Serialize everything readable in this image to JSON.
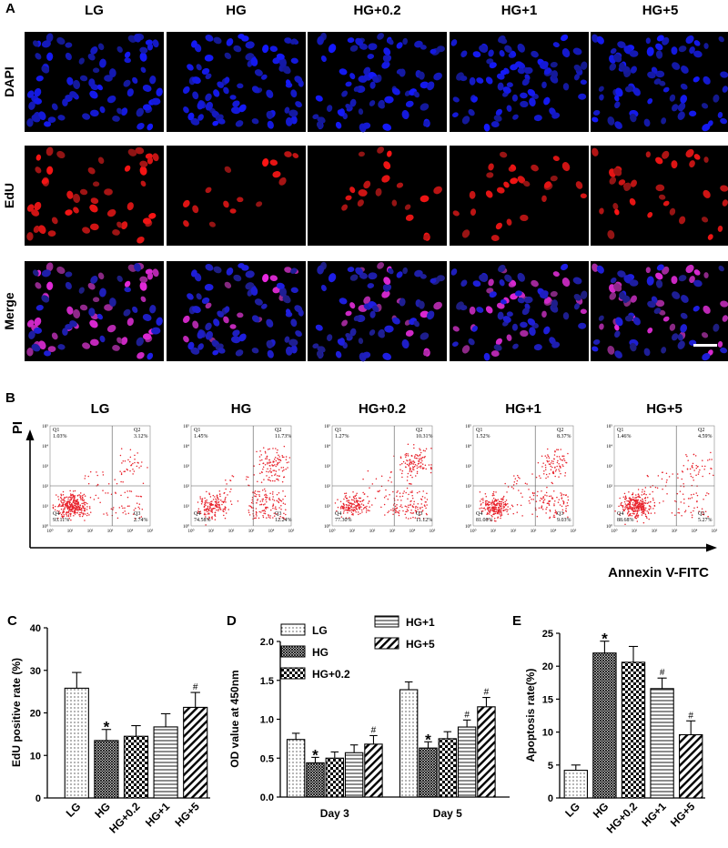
{
  "panel_a": {
    "letter": "A",
    "columns": [
      "LG",
      "HG",
      "HG+0.2",
      "HG+1",
      "HG+5"
    ],
    "rows": [
      "DAPI",
      "EdU",
      "Merge"
    ]
  },
  "panel_b": {
    "letter": "B",
    "groups": [
      "LG",
      "HG",
      "HG+0.2",
      "HG+1",
      "HG+5"
    ],
    "y_label": "PI",
    "x_label": "Annexin V-FITC",
    "quadrant_names": [
      "Q1",
      "Q2",
      "Q3",
      "Q4"
    ],
    "axis_tick_labels": [
      "10⁰",
      "10¹",
      "10²",
      "10³",
      "10⁴",
      "10⁵"
    ],
    "plots": [
      {
        "Q1": "1.03%",
        "Q2": "3.12%",
        "Q3": "2.74%",
        "Q4": "93.11%"
      },
      {
        "Q1": "1.45%",
        "Q2": "11.73%",
        "Q3": "12.24%",
        "Q4": "74.58%"
      },
      {
        "Q1": "1.27%",
        "Q2": "10.31%",
        "Q3": "11.12%",
        "Q4": "77.30%"
      },
      {
        "Q1": "1.52%",
        "Q2": "8.37%",
        "Q3": "9.03%",
        "Q4": "81.08%"
      },
      {
        "Q1": "1.46%",
        "Q2": "4.59%",
        "Q3": "5.27%",
        "Q4": "88.68%"
      }
    ]
  },
  "chart_data": [
    {
      "type": "bar",
      "panel": "C",
      "y_label": "EdU positive rate (%)",
      "categories": [
        "LG",
        "HG",
        "HG+0.2",
        "HG+1",
        "HG+5"
      ],
      "values": [
        25.8,
        13.5,
        14.5,
        16.7,
        21.3
      ],
      "errors": [
        3.7,
        2.6,
        2.5,
        3.1,
        3.5
      ],
      "annotations": [
        null,
        "*",
        null,
        null,
        "#"
      ],
      "patterns": [
        "dots",
        "crosshatch",
        "checker",
        "hlines",
        "diagonal"
      ],
      "color": "#000000",
      "ylim": [
        0,
        40
      ],
      "yticks": [
        0,
        10,
        20,
        30,
        40
      ]
    },
    {
      "type": "grouped_bar",
      "panel": "D",
      "y_label": "OD value at 450nm",
      "categories": [
        "Day 3",
        "Day 5"
      ],
      "series": [
        {
          "name": "LG",
          "pattern": "dots",
          "values": [
            0.74,
            1.38
          ],
          "errors": [
            0.08,
            0.1
          ]
        },
        {
          "name": "HG",
          "pattern": "crosshatch",
          "values": [
            0.44,
            0.63
          ],
          "errors": [
            0.07,
            0.08
          ],
          "annotations": [
            "*",
            "*"
          ]
        },
        {
          "name": "HG+0.2",
          "pattern": "checker",
          "values": [
            0.5,
            0.75
          ],
          "errors": [
            0.08,
            0.09
          ]
        },
        {
          "name": "HG+1",
          "pattern": "hlines",
          "values": [
            0.57,
            0.9
          ],
          "errors": [
            0.1,
            0.09
          ],
          "annotations": [
            null,
            "#"
          ]
        },
        {
          "name": "HG+5",
          "pattern": "diagonal",
          "values": [
            0.68,
            1.16
          ],
          "errors": [
            0.11,
            0.12
          ],
          "annotations": [
            "#",
            "#"
          ]
        }
      ],
      "color": "#000000",
      "legend": "top-left",
      "ylim": [
        0,
        2
      ],
      "yticks": [
        {
          "value": 0,
          "label": "0.0"
        },
        0.5,
        {
          "value": 1,
          "label": "1.0"
        },
        1.5,
        {
          "value": 2,
          "label": "2.0"
        }
      ]
    },
    {
      "type": "bar",
      "panel": "E",
      "y_label": "Apoptosis rate(%)",
      "categories": [
        "LG",
        "HG",
        "HG+0.2",
        "HG+1",
        "HG+5"
      ],
      "values": [
        4.2,
        22,
        20.6,
        16.6,
        9.6
      ],
      "errors": [
        0.8,
        1.8,
        2.4,
        1.6,
        2.1
      ],
      "annotations": [
        null,
        "*",
        null,
        "#",
        "#"
      ],
      "patterns": [
        "dots",
        "crosshatch",
        "checker",
        "hlines",
        "diagonal"
      ],
      "color": "#000000",
      "ylim": [
        0,
        25
      ],
      "yticks": [
        0,
        5,
        10,
        15,
        20,
        25
      ]
    }
  ]
}
